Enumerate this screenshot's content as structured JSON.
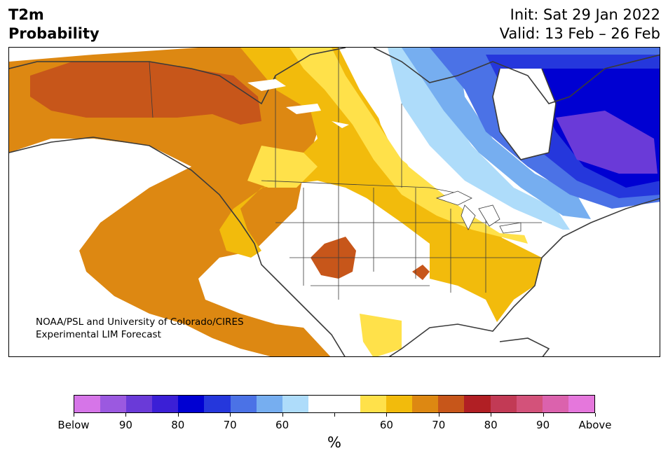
{
  "header": {
    "title_line1": "T2m",
    "title_line2": "Probability",
    "init": "Init: Sat 29 Jan 2022",
    "valid": "Valid: 13 Feb – 26 Feb"
  },
  "map": {
    "region": "North America",
    "credit_line1": "NOAA/PSL and University of Colorado/CIRES",
    "credit_line2": "Experimental LIM Forecast"
  },
  "colorbar": {
    "colors": [
      "#d675e8",
      "#9b59e0",
      "#6a3ad8",
      "#3b1fd6",
      "#0000d2",
      "#2537dc",
      "#4b72e6",
      "#76aef0",
      "#aedcfa",
      "#ffffff",
      "#ffffff",
      "#ffe14a",
      "#f2bb0c",
      "#dd8812",
      "#c7561a",
      "#b11f24",
      "#c23a55",
      "#d3527a",
      "#db62ad",
      "#e577dc"
    ],
    "labels": [
      "Below",
      "90",
      "80",
      "70",
      "60",
      "",
      "60",
      "70",
      "80",
      "90",
      "Above"
    ],
    "units": "%"
  }
}
